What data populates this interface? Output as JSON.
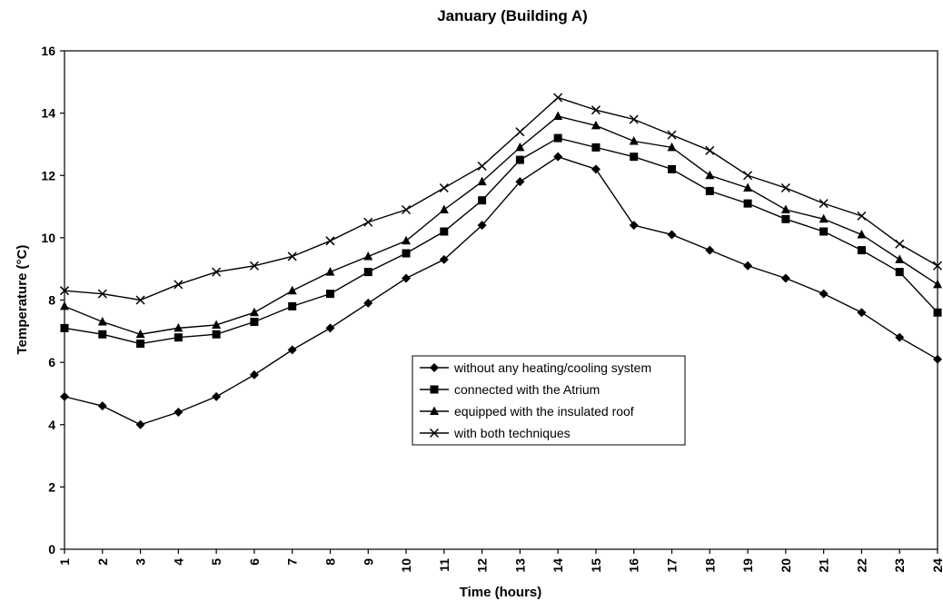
{
  "chart_data": {
    "type": "line",
    "title": "January (Building A)",
    "xlabel": "Time (hours)",
    "ylabel": "Temperature (°C)",
    "x": [
      1,
      2,
      3,
      4,
      5,
      6,
      7,
      8,
      9,
      10,
      11,
      12,
      13,
      14,
      15,
      16,
      17,
      18,
      19,
      20,
      21,
      22,
      23,
      24
    ],
    "xticks": [
      "1",
      "2",
      "3",
      "4",
      "5",
      "6",
      "7",
      "8",
      "9",
      "10",
      "11",
      "12",
      "13",
      "14",
      "15",
      "16",
      "17",
      "18",
      "19",
      "20",
      "21",
      "22",
      "23",
      "24"
    ],
    "ylim": [
      0,
      16
    ],
    "yticks": [
      "0",
      "2",
      "4",
      "6",
      "8",
      "10",
      "12",
      "14",
      "16"
    ],
    "grid": false,
    "legend_position": "center-right",
    "series": [
      {
        "name": "without any heating/cooling system",
        "marker": "diamond",
        "values": [
          4.9,
          4.6,
          4.0,
          4.4,
          4.9,
          5.6,
          6.4,
          7.1,
          7.9,
          8.7,
          9.3,
          10.4,
          11.8,
          12.6,
          12.2,
          10.4,
          10.1,
          9.6,
          9.1,
          8.7,
          8.2,
          7.6,
          6.8,
          6.1
        ]
      },
      {
        "name": "connected with the Atrium",
        "marker": "square",
        "values": [
          7.1,
          6.9,
          6.6,
          6.8,
          6.9,
          7.3,
          7.8,
          8.2,
          8.9,
          9.5,
          10.2,
          11.2,
          12.5,
          13.2,
          12.9,
          12.6,
          12.2,
          11.5,
          11.1,
          10.6,
          10.2,
          9.6,
          8.9,
          7.6
        ]
      },
      {
        "name": "equipped with the insulated roof",
        "marker": "triangle",
        "values": [
          7.8,
          7.3,
          6.9,
          7.1,
          7.2,
          7.6,
          8.3,
          8.9,
          9.4,
          9.9,
          10.9,
          11.8,
          12.9,
          13.9,
          13.6,
          13.1,
          12.9,
          12.0,
          11.6,
          10.9,
          10.6,
          10.1,
          9.3,
          8.5
        ]
      },
      {
        "name": "with both techniques",
        "marker": "x",
        "values": [
          8.3,
          8.2,
          8.0,
          8.5,
          8.9,
          9.1,
          9.4,
          9.9,
          10.5,
          10.9,
          11.6,
          12.3,
          13.4,
          14.5,
          14.1,
          13.8,
          13.3,
          12.8,
          12.0,
          11.6,
          11.1,
          10.7,
          9.8,
          9.1
        ]
      }
    ]
  }
}
